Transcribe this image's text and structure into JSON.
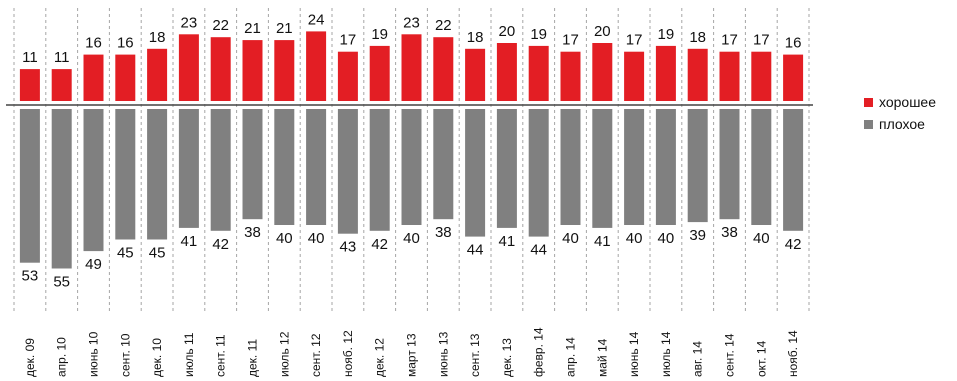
{
  "chart_data": {
    "type": "bar",
    "categories": [
      "дек. 09",
      "апр. 10",
      "июнь 10",
      "сент. 10",
      "дек. 10",
      "июль 11",
      "сент. 11",
      "дек. 11",
      "июль 12",
      "сент. 12",
      "нояб. 12",
      "дек. 12",
      "март 13",
      "июнь 13",
      "сент. 13",
      "дек. 13",
      "февр. 14",
      "апр. 14",
      "май 14",
      "июнь 14",
      "июль 14",
      "авг. 14",
      "сент. 14",
      "окт. 14",
      "нояб. 14"
    ],
    "series": [
      {
        "name": "хорошее",
        "color": "#e31e24",
        "direction": "up",
        "values": [
          11,
          11,
          16,
          16,
          18,
          23,
          22,
          21,
          21,
          24,
          17,
          19,
          23,
          22,
          18,
          20,
          19,
          17,
          20,
          17,
          19,
          18,
          17,
          17,
          16
        ]
      },
      {
        "name": "плохое",
        "color": "#808080",
        "direction": "down",
        "values": [
          53,
          55,
          49,
          45,
          45,
          41,
          42,
          38,
          40,
          40,
          43,
          42,
          40,
          38,
          44,
          41,
          44,
          40,
          41,
          40,
          40,
          39,
          38,
          40,
          42
        ]
      }
    ],
    "title": "",
    "xlabel": "",
    "ylabel": "",
    "grid": false,
    "gridlines": "vertical dashed separators between categories",
    "legend_position": "right"
  }
}
